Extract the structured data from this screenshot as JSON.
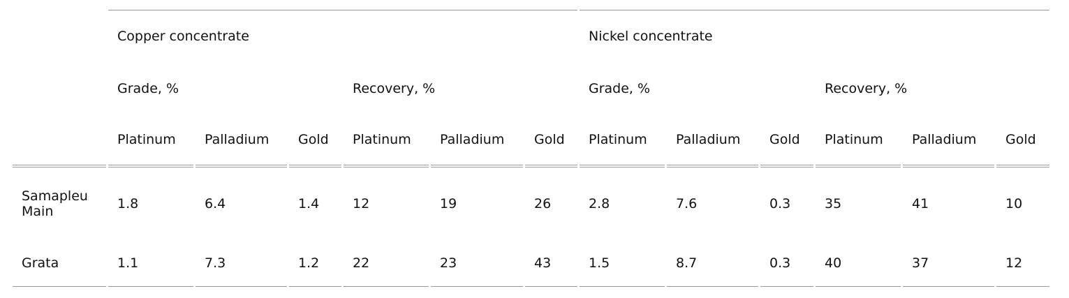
{
  "table": {
    "header": {
      "concentrates": [
        "Copper concentrate",
        "Nickel concentrate"
      ],
      "measures": [
        "Grade, %",
        "Recovery, %",
        "Grade, %",
        "Recovery, %"
      ],
      "metals": [
        "Platinum",
        "Palladium",
        "Gold",
        "Platinum",
        "Palladium",
        "Gold",
        "Platinum",
        "Palladium",
        "Gold",
        "Platinum",
        "Palladium",
        "Gold"
      ]
    },
    "rows": [
      [
        "Samapleu Main",
        1.8,
        6.4,
        1.4,
        12,
        19,
        26,
        2.8,
        7.6,
        0.3,
        35,
        41,
        10
      ],
      [
        "Grata",
        1.1,
        7.3,
        1.2,
        22,
        23,
        43,
        1.5,
        8.7,
        0.3,
        40,
        37,
        12
      ]
    ]
  }
}
